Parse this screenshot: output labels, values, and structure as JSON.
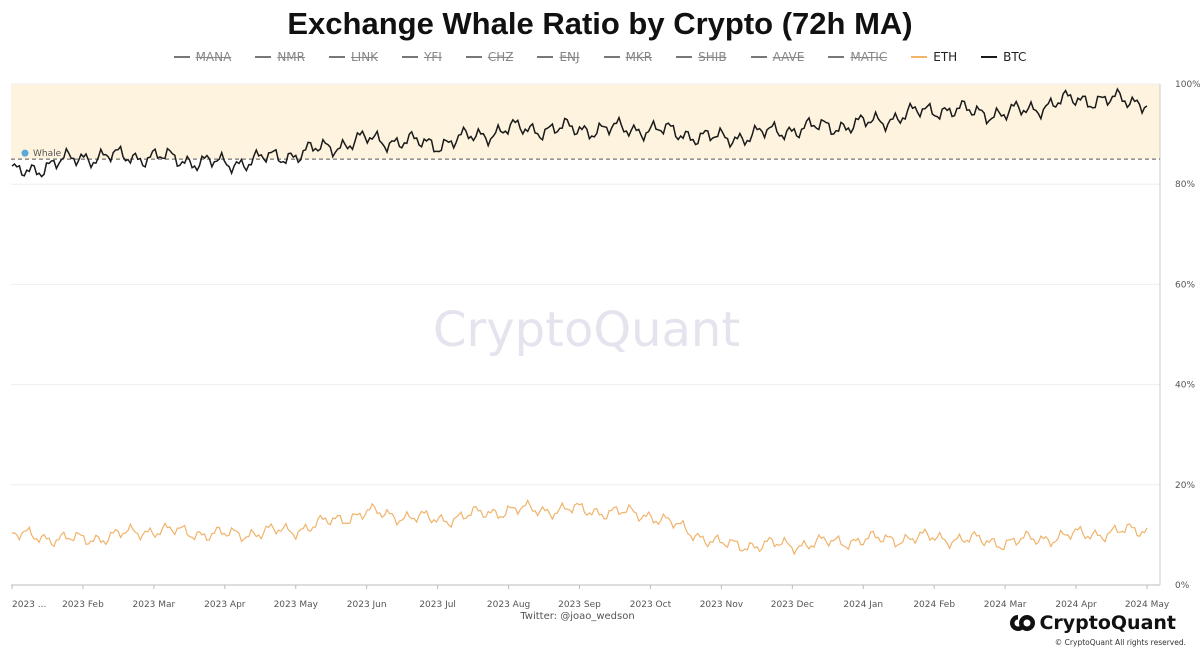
{
  "chart_data": {
    "type": "line",
    "title": "Exchange Whale Ratio by Crypto (72h MA)",
    "xlabel": "",
    "ylabel": "",
    "ylim": [
      0,
      100
    ],
    "y_ticks": [
      "0%",
      "20%",
      "40%",
      "60%",
      "80%",
      "100%"
    ],
    "y_tick_values": [
      0,
      20,
      40,
      60,
      80,
      100
    ],
    "x_ticks": [
      "2023 ...",
      "2023 Feb",
      "2023 Mar",
      "2023 Apr",
      "2023 May",
      "2023 Jun",
      "2023 Jul",
      "2023 Aug",
      "2023 Sep",
      "2023 Oct",
      "2023 Nov",
      "2023 Dec",
      "2024 Jan",
      "2024 Feb",
      "2024 Mar",
      "2024 Apr",
      "2024 May"
    ],
    "grid": true,
    "legend_position": "top",
    "legend": [
      {
        "name": "MANA",
        "visible": false,
        "color": "#777777"
      },
      {
        "name": "NMR",
        "visible": false,
        "color": "#777777"
      },
      {
        "name": "LINK",
        "visible": false,
        "color": "#777777"
      },
      {
        "name": "YFI",
        "visible": false,
        "color": "#777777"
      },
      {
        "name": "CHZ",
        "visible": false,
        "color": "#777777"
      },
      {
        "name": "ENJ",
        "visible": false,
        "color": "#777777"
      },
      {
        "name": "MKR",
        "visible": false,
        "color": "#777777"
      },
      {
        "name": "SHIB",
        "visible": false,
        "color": "#777777"
      },
      {
        "name": "AAVE",
        "visible": false,
        "color": "#777777"
      },
      {
        "name": "MATIC",
        "visible": false,
        "color": "#777777"
      },
      {
        "name": "ETH",
        "visible": true,
        "color": "#f0b36a"
      },
      {
        "name": "BTC",
        "visible": true,
        "color": "#1a1a1a"
      }
    ],
    "x": [
      "2023 ...",
      "2023 Feb",
      "2023 Mar",
      "2023 Apr",
      "2023 May",
      "2023 Jun",
      "2023 Jul",
      "2023 Aug",
      "2023 Sep",
      "2023 Oct",
      "2023 Nov",
      "2023 Dec",
      "2024 Jan",
      "2024 Feb",
      "2024 Mar",
      "2024 Apr",
      "2024 May"
    ],
    "series": [
      {
        "name": "BTC",
        "color": "#1a1a1a",
        "values": [
          82,
          85.5,
          85.5,
          84,
          86,
          89,
          88,
          91,
          91,
          91,
          89,
          91,
          92,
          95,
          94,
          97,
          96.5
        ]
      },
      {
        "name": "ETH",
        "color": "#f0b36a",
        "values": [
          10,
          9,
          11,
          10,
          11,
          14.5,
          13,
          15,
          15,
          14,
          8,
          8,
          9,
          9.5,
          8.5,
          10,
          11
        ]
      }
    ],
    "threshold": {
      "value": 85,
      "label": "Whale",
      "band_color": "#fdf3df"
    },
    "watermark": "CryptoQuant"
  },
  "footer": {
    "twitter": "Twitter: @joao_wedson",
    "brand": "CryptoQuant",
    "copyright": "© CryptoQuant All rights reserved."
  }
}
